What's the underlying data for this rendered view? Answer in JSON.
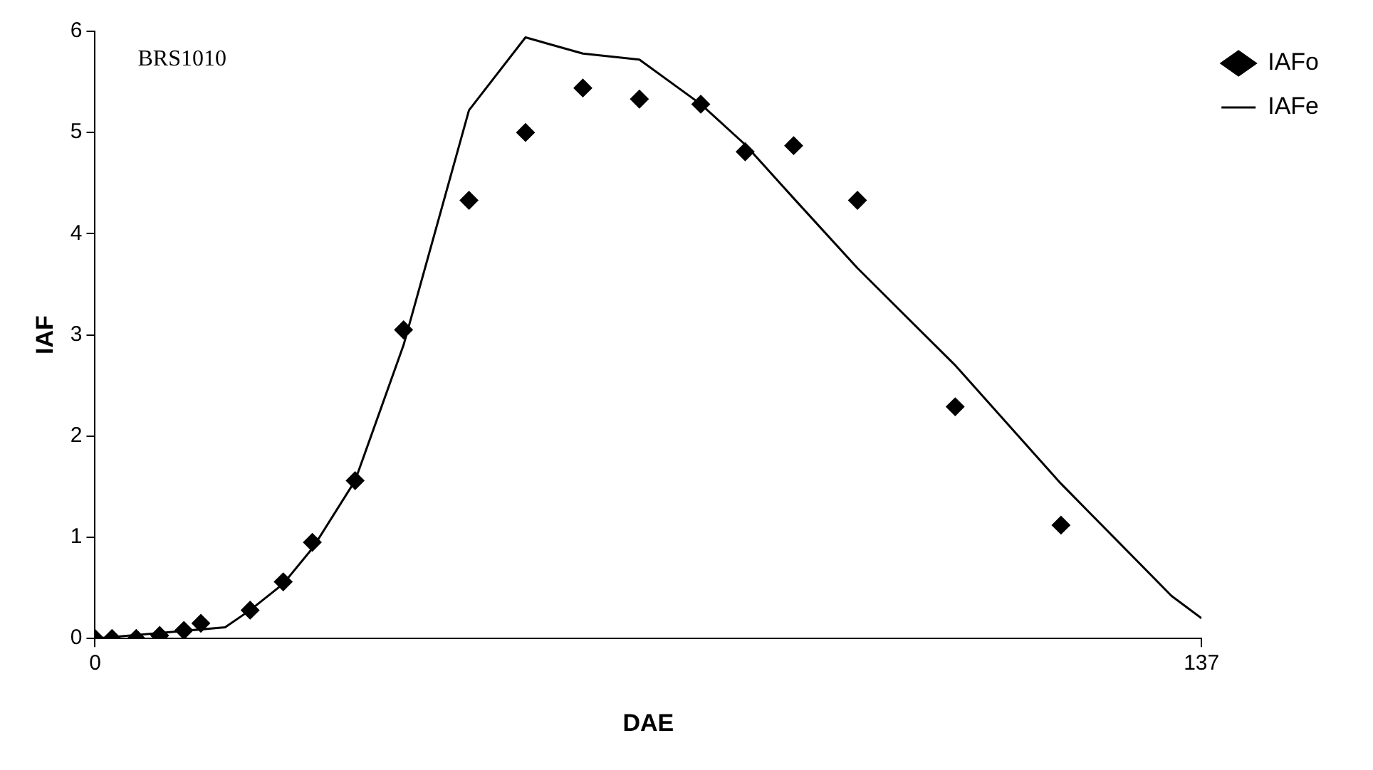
{
  "chart_data": {
    "type": "scatter",
    "xlabel": "DAE",
    "ylabel": "IAF",
    "annotations": [
      "BRS1010"
    ],
    "xlim": [
      0,
      137
    ],
    "xticks": [
      0,
      137
    ],
    "ylim": [
      0,
      6
    ],
    "yticks": [
      0,
      1,
      2,
      3,
      4,
      5,
      6
    ],
    "grid": false,
    "legend": "top right",
    "series": [
      {
        "name": "IAFo",
        "type": "scatter",
        "marker": "diamond",
        "color": "#000000",
        "x": [
          0,
          2.1,
          5.1,
          8,
          11,
          13.1,
          19.2,
          23.3,
          26.9,
          32.2,
          38.2,
          46.3,
          53.3,
          60.4,
          67.4,
          75,
          80.5,
          86.5,
          94.4,
          106.5,
          119.6
        ],
        "values": [
          0,
          0,
          0,
          0.03,
          0.08,
          0.15,
          0.28,
          0.56,
          0.95,
          1.56,
          3.05,
          4.33,
          5,
          5.44,
          5.33,
          5.28,
          4.81,
          4.87,
          4.33,
          2.29,
          1.12
        ]
      },
      {
        "name": "IAFe",
        "type": "line",
        "marker": "none",
        "line_style": "solid",
        "color": "#000000",
        "x": [
          0,
          16.1,
          19.2,
          23.3,
          27,
          32.2,
          38.2,
          46.3,
          53.3,
          60.4,
          67.4,
          75,
          80.5,
          86.5,
          94.4,
          106.5,
          119.6,
          133.3,
          137
        ],
        "values": [
          0,
          0.11,
          0.28,
          0.54,
          0.9,
          1.56,
          2.9,
          5.22,
          5.94,
          5.78,
          5.72,
          5.28,
          4.88,
          4.35,
          3.66,
          2.7,
          1.53,
          0.42,
          0.2
        ]
      }
    ]
  }
}
